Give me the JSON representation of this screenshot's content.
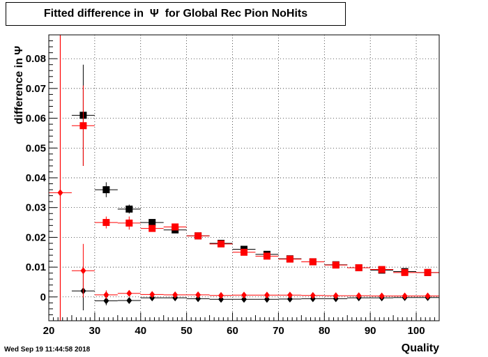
{
  "title": "Fitted difference in  Ψ  for Global Rec Pion NoHits",
  "timestamp": "Wed Sep 19 11:44:58 2018",
  "chart_data": {
    "type": "scatter",
    "title": "Fitted difference in  Ψ  for Global Rec Pion NoHits",
    "xlabel": "Quality",
    "ylabel": "difference in Ψ",
    "xlim": [
      20,
      105
    ],
    "ylim": [
      -0.008,
      0.088
    ],
    "grid": true,
    "x_ticks": [
      20,
      30,
      40,
      50,
      60,
      70,
      80,
      90,
      100
    ],
    "y_ticks": [
      0,
      0.01,
      0.02,
      0.03,
      0.04,
      0.05,
      0.06,
      0.07,
      0.08
    ],
    "x_tick_labels": [
      "20",
      "30",
      "40",
      "50",
      "60",
      "70",
      "80",
      "90",
      "100"
    ],
    "y_tick_labels": [
      "0",
      "0.01",
      "0.02",
      "0.03",
      "0.04",
      "0.05",
      "0.06",
      "0.07",
      "0.08"
    ],
    "vertical_line_x": 22.5,
    "series": [
      {
        "color": "#000000",
        "marker": "square",
        "points": [
          {
            "x": 27.5,
            "y": 0.061,
            "xerr": 2.5,
            "yerr": 0.017
          },
          {
            "x": 32.5,
            "y": 0.036,
            "xerr": 2.5,
            "yerr": 0.0025
          },
          {
            "x": 37.5,
            "y": 0.0295,
            "xerr": 2.5,
            "yerr": 0.0015
          },
          {
            "x": 42.5,
            "y": 0.025,
            "xerr": 2.5,
            "yerr": 0.0007
          },
          {
            "x": 47.5,
            "y": 0.0225,
            "xerr": 2.5,
            "yerr": 0.0005
          },
          {
            "x": 52.5,
            "y": 0.0205,
            "xerr": 2.5,
            "yerr": 0.0004
          },
          {
            "x": 57.5,
            "y": 0.018,
            "xerr": 2.5,
            "yerr": 0.0004
          },
          {
            "x": 62.5,
            "y": 0.016,
            "xerr": 2.5,
            "yerr": 0.0003
          },
          {
            "x": 67.5,
            "y": 0.0143,
            "xerr": 2.5,
            "yerr": 0.0003
          },
          {
            "x": 72.5,
            "y": 0.0128,
            "xerr": 2.5,
            "yerr": 0.0003
          },
          {
            "x": 77.5,
            "y": 0.0118,
            "xerr": 2.5,
            "yerr": 0.0003
          },
          {
            "x": 82.5,
            "y": 0.0108,
            "xerr": 2.5,
            "yerr": 0.0003
          },
          {
            "x": 87.5,
            "y": 0.0098,
            "xerr": 2.5,
            "yerr": 0.0003
          },
          {
            "x": 92.5,
            "y": 0.009,
            "xerr": 2.5,
            "yerr": 0.0003
          },
          {
            "x": 97.5,
            "y": 0.0085,
            "xerr": 2.5,
            "yerr": 0.0003
          },
          {
            "x": 102.5,
            "y": 0.0082,
            "xerr": 2.5,
            "yerr": 0.0003
          }
        ]
      },
      {
        "color": "#ff0000",
        "marker": "square",
        "points": [
          {
            "x": 27.5,
            "y": 0.0575,
            "xerr": 2.5,
            "yerr": 0.0135
          },
          {
            "x": 32.5,
            "y": 0.025,
            "xerr": 2.5,
            "yerr": 0.002
          },
          {
            "x": 37.5,
            "y": 0.0248,
            "xerr": 2.5,
            "yerr": 0.0022
          },
          {
            "x": 42.5,
            "y": 0.023,
            "xerr": 2.5,
            "yerr": 0.0007
          },
          {
            "x": 47.5,
            "y": 0.0235,
            "xerr": 2.5,
            "yerr": 0.0005
          },
          {
            "x": 52.5,
            "y": 0.0205,
            "xerr": 2.5,
            "yerr": 0.0004
          },
          {
            "x": 57.5,
            "y": 0.0178,
            "xerr": 2.5,
            "yerr": 0.0004
          },
          {
            "x": 62.5,
            "y": 0.015,
            "xerr": 2.5,
            "yerr": 0.0003
          },
          {
            "x": 67.5,
            "y": 0.0137,
            "xerr": 2.5,
            "yerr": 0.0003
          },
          {
            "x": 72.5,
            "y": 0.0127,
            "xerr": 2.5,
            "yerr": 0.0003
          },
          {
            "x": 77.5,
            "y": 0.0118,
            "xerr": 2.5,
            "yerr": 0.0003
          },
          {
            "x": 82.5,
            "y": 0.0107,
            "xerr": 2.5,
            "yerr": 0.0003
          },
          {
            "x": 87.5,
            "y": 0.0098,
            "xerr": 2.5,
            "yerr": 0.0003
          },
          {
            "x": 92.5,
            "y": 0.0092,
            "xerr": 2.5,
            "yerr": 0.0003
          },
          {
            "x": 97.5,
            "y": 0.0082,
            "xerr": 2.5,
            "yerr": 0.0003
          },
          {
            "x": 102.5,
            "y": 0.0082,
            "xerr": 2.5,
            "yerr": 0.0003
          }
        ]
      },
      {
        "color": "#000000",
        "marker": "diamond",
        "points": [
          {
            "x": 27.5,
            "y": 0.002,
            "xerr": 2.5,
            "yerr": 0.0065
          },
          {
            "x": 32.5,
            "y": -0.0013,
            "xerr": 2.5,
            "yerr": 0.0015
          },
          {
            "x": 37.5,
            "y": -0.0012,
            "xerr": 2.5,
            "yerr": 0.0005
          },
          {
            "x": 42.5,
            "y": -0.0003,
            "xerr": 2.5,
            "yerr": 0.0002
          },
          {
            "x": 47.5,
            "y": -0.0003,
            "xerr": 2.5,
            "yerr": 0.0002
          },
          {
            "x": 52.5,
            "y": -0.0006,
            "xerr": 2.5,
            "yerr": 0.0002
          },
          {
            "x": 57.5,
            "y": -0.0008,
            "xerr": 2.5,
            "yerr": 0.0002
          },
          {
            "x": 62.5,
            "y": -0.0008,
            "xerr": 2.5,
            "yerr": 0.0002
          },
          {
            "x": 67.5,
            "y": -0.0008,
            "xerr": 2.5,
            "yerr": 0.0002
          },
          {
            "x": 72.5,
            "y": -0.0007,
            "xerr": 2.5,
            "yerr": 0.0002
          },
          {
            "x": 77.5,
            "y": -0.0006,
            "xerr": 2.5,
            "yerr": 0.0002
          },
          {
            "x": 82.5,
            "y": -0.0006,
            "xerr": 2.5,
            "yerr": 0.0002
          },
          {
            "x": 87.5,
            "y": -0.0003,
            "xerr": 2.5,
            "yerr": 0.0002
          },
          {
            "x": 92.5,
            "y": -0.0003,
            "xerr": 2.5,
            "yerr": 0.0002
          },
          {
            "x": 97.5,
            "y": -0.0002,
            "xerr": 2.5,
            "yerr": 0.0002
          },
          {
            "x": 102.5,
            "y": -0.0002,
            "xerr": 2.5,
            "yerr": 0.0002
          }
        ]
      },
      {
        "color": "#ff0000",
        "marker": "diamond",
        "points": [
          {
            "x": 22.5,
            "y": 0.035,
            "xerr": 2.5,
            "yerr": 0.0
          },
          {
            "x": 27.5,
            "y": 0.0088,
            "xerr": 2.5,
            "yerr": 0.009
          },
          {
            "x": 32.5,
            "y": 0.0007,
            "xerr": 2.5,
            "yerr": 0.0015
          },
          {
            "x": 37.5,
            "y": 0.0012,
            "xerr": 2.5,
            "yerr": 0.0005
          },
          {
            "x": 42.5,
            "y": 0.0008,
            "xerr": 2.5,
            "yerr": 0.0002
          },
          {
            "x": 47.5,
            "y": 0.0007,
            "xerr": 2.5,
            "yerr": 0.0002
          },
          {
            "x": 52.5,
            "y": 0.0007,
            "xerr": 2.5,
            "yerr": 0.0002
          },
          {
            "x": 57.5,
            "y": 0.0005,
            "xerr": 2.5,
            "yerr": 0.0002
          },
          {
            "x": 62.5,
            "y": 0.0006,
            "xerr": 2.5,
            "yerr": 0.0002
          },
          {
            "x": 67.5,
            "y": 0.0006,
            "xerr": 2.5,
            "yerr": 0.0002
          },
          {
            "x": 72.5,
            "y": 0.0006,
            "xerr": 2.5,
            "yerr": 0.0002
          },
          {
            "x": 77.5,
            "y": 0.0005,
            "xerr": 2.5,
            "yerr": 0.0002
          },
          {
            "x": 82.5,
            "y": 0.0004,
            "xerr": 2.5,
            "yerr": 0.0002
          },
          {
            "x": 87.5,
            "y": 0.0004,
            "xerr": 2.5,
            "yerr": 0.0002
          },
          {
            "x": 92.5,
            "y": 0.0003,
            "xerr": 2.5,
            "yerr": 0.0002
          },
          {
            "x": 97.5,
            "y": 0.0003,
            "xerr": 2.5,
            "yerr": 0.0002
          },
          {
            "x": 102.5,
            "y": 0.0003,
            "xerr": 2.5,
            "yerr": 0.0002
          }
        ]
      }
    ]
  }
}
